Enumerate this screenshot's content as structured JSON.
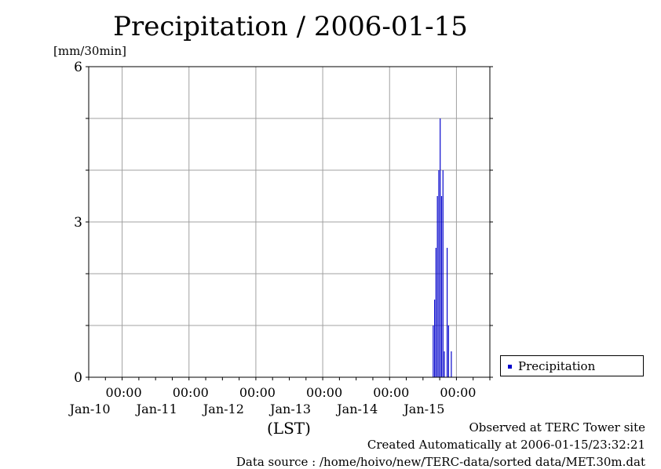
{
  "chart_data": {
    "type": "bar",
    "title": "Precipitation / 2006-01-15",
    "ylabel": "[mm/30min]",
    "xlabel": "(LST)",
    "ylim": [
      0,
      6
    ],
    "yticks": [
      0,
      3,
      6
    ],
    "xlim": [
      "2006-01-09 12:00",
      "2006-01-15 12:00"
    ],
    "xticks": [
      {
        "time": "00:00",
        "date": "Jan-10"
      },
      {
        "time": "00:00",
        "date": "Jan-11"
      },
      {
        "time": "00:00",
        "date": "Jan-12"
      },
      {
        "time": "00:00",
        "date": "Jan-13"
      },
      {
        "time": "00:00",
        "date": "Jan-14"
      },
      {
        "time": "00:00",
        "date": "Jan-15"
      }
    ],
    "grid": true,
    "legend": "bottom-right",
    "series": [
      {
        "name": "Precipitation",
        "color": "#0000cc",
        "points": [
          {
            "t": "2006-01-14 15:30",
            "v": 1.0
          },
          {
            "t": "2006-01-14 16:00",
            "v": 1.5
          },
          {
            "t": "2006-01-14 16:30",
            "v": 2.5
          },
          {
            "t": "2006-01-14 17:00",
            "v": 3.5
          },
          {
            "t": "2006-01-14 17:30",
            "v": 4.0
          },
          {
            "t": "2006-01-14 18:00",
            "v": 5.0
          },
          {
            "t": "2006-01-14 18:30",
            "v": 3.5
          },
          {
            "t": "2006-01-14 19:00",
            "v": 4.0
          },
          {
            "t": "2006-01-14 19:30",
            "v": 0.5
          },
          {
            "t": "2006-01-14 20:30",
            "v": 2.5
          },
          {
            "t": "2006-01-14 21:00",
            "v": 1.0
          },
          {
            "t": "2006-01-14 22:00",
            "v": 0.5
          }
        ]
      }
    ]
  },
  "footer": {
    "observed": "Observed at TERC Tower site",
    "created": "Created Automatically at 2006-01-15/23:32:21",
    "source": "Data source : /home/hoivo/new/TERC-data/sorted  data/MET.30m.dat"
  }
}
